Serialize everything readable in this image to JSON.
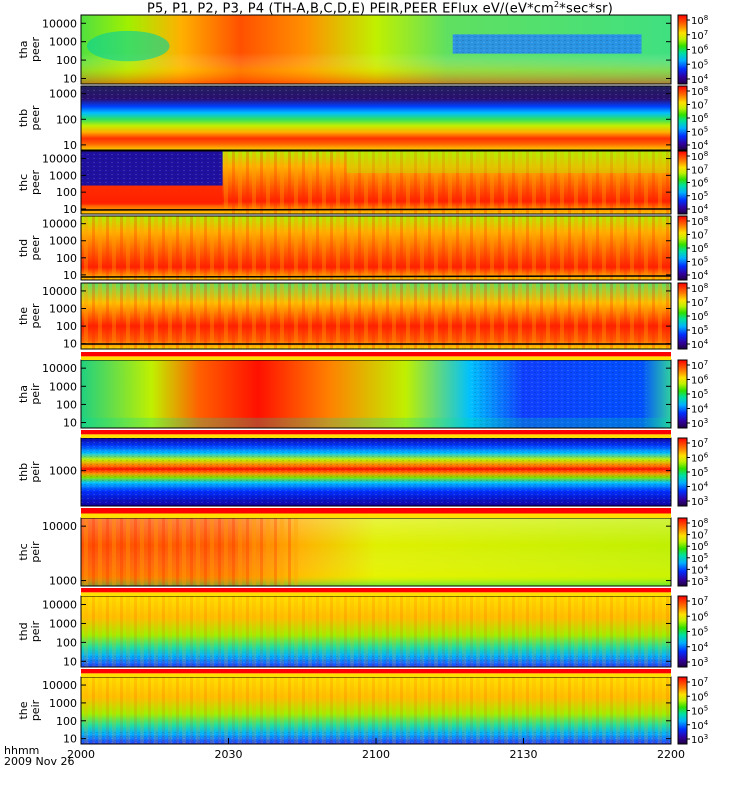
{
  "title": {
    "prefix": "P5, P1, P2, P3, P4 (TH-A,B,C,D,E) PEIR,PEER EFlux eV/(eV*cm",
    "sup": "2",
    "suffix": "*sec*sr)"
  },
  "time_label": "hhmm",
  "date_label": "2009 Nov 26",
  "chart_data": {
    "type": "heatmap",
    "title": "P5, P1, P2, P3, P4 (TH-A,B,C,D,E) PEIR,PEER EFlux eV/(eV*cm2*sec*sr)",
    "x_ticks": [
      "2000",
      "2030",
      "2100",
      "2130",
      "2200"
    ],
    "panels": [
      {
        "probe": "tha",
        "species": "peer",
        "ylabel": "tha peer",
        "y_ticks": [
          "10000",
          "1000",
          "100",
          "10"
        ],
        "cbar_ticks": [
          "10^8",
          "10^7",
          "10^6",
          "10^5",
          "10^4"
        ],
        "scale": "log"
      },
      {
        "probe": "thb",
        "species": "peer",
        "ylabel": "thb peer",
        "y_ticks": [
          "1000",
          "100",
          "10"
        ],
        "cbar_ticks": [
          "10^8",
          "10^7",
          "10^6",
          "10^5",
          "10^4"
        ],
        "scale": "log"
      },
      {
        "probe": "thc",
        "species": "peer",
        "ylabel": "thc peer",
        "y_ticks": [
          "10000",
          "1000",
          "100",
          "10"
        ],
        "cbar_ticks": [
          "10^8",
          "10^7",
          "10^6",
          "10^5",
          "10^4"
        ],
        "scale": "log"
      },
      {
        "probe": "thd",
        "species": "peer",
        "ylabel": "thd peer",
        "y_ticks": [
          "10000",
          "1000",
          "100",
          "10"
        ],
        "cbar_ticks": [
          "10^8",
          "10^7",
          "10^6",
          "10^5",
          "10^4"
        ],
        "scale": "log"
      },
      {
        "probe": "the",
        "species": "peer",
        "ylabel": "the peer",
        "y_ticks": [
          "10000",
          "1000",
          "100",
          "10"
        ],
        "cbar_ticks": [
          "10^8",
          "10^7",
          "10^6",
          "10^5",
          "10^4"
        ],
        "scale": "log"
      },
      {
        "probe": "tha",
        "species": "peir",
        "ylabel": "tha peir",
        "y_ticks": [
          "10000",
          "1000",
          "100",
          "10"
        ],
        "cbar_ticks": [
          "10^7",
          "10^6",
          "10^5",
          "10^4",
          "10^3"
        ],
        "scale": "log"
      },
      {
        "probe": "thb",
        "species": "peir",
        "ylabel": "thb peir",
        "y_ticks": [
          "1000"
        ],
        "cbar_ticks": [
          "10^7",
          "10^6",
          "10^5",
          "10^4",
          "10^3"
        ],
        "scale": "log"
      },
      {
        "probe": "thc",
        "species": "peir",
        "ylabel": "thc peir",
        "y_ticks": [
          "10000",
          "1000"
        ],
        "cbar_ticks": [
          "10^8",
          "10^7",
          "10^6",
          "10^5",
          "10^4",
          "10^3"
        ],
        "scale": "log"
      },
      {
        "probe": "thd",
        "species": "peir",
        "ylabel": "thd peir",
        "y_ticks": [
          "10000",
          "1000",
          "100",
          "10"
        ],
        "cbar_ticks": [
          "10^7",
          "10^6",
          "10^5",
          "10^4",
          "10^3"
        ],
        "scale": "log"
      },
      {
        "probe": "the",
        "species": "peir",
        "ylabel": "the peir",
        "y_ticks": [
          "10000",
          "1000",
          "100",
          "10"
        ],
        "cbar_ticks": [
          "10^7",
          "10^6",
          "10^5",
          "10^4",
          "10^3"
        ],
        "scale": "log"
      }
    ]
  }
}
